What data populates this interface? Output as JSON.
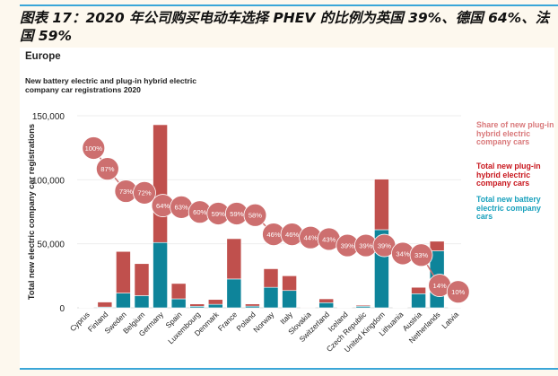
{
  "caption": "图表 17：2020 年公司购买电动车选择 PHEV 的比例为英国 39%、德国 64%、法国 59%",
  "colors": {
    "phev": "#c0504d",
    "bev": "#0e849a",
    "share_bubble": "#cd6f6f",
    "share_legend": "#d9787a",
    "phev_legend": "#c8161d",
    "bev_legend": "#17a0bc",
    "accent_line": "#3aa6d8"
  },
  "chart_data": {
    "type": "bar",
    "stacked": true,
    "region": "Europe",
    "title": "New battery electric and plug-in hybrid electric company car registrations 2020",
    "xlabel": "",
    "ylabel": "Total new electric company car registrations",
    "ylim": [
      0,
      150000
    ],
    "yticks": [
      0,
      50000,
      100000,
      150000
    ],
    "ytick_labels": [
      "0",
      "50,000",
      "100,000",
      "150,000"
    ],
    "grid": true,
    "legend_position": "right",
    "categories": [
      "Cyprus",
      "Finland",
      "Sweden",
      "Belgium",
      "Germany",
      "Spain",
      "Luxembourg",
      "Denmark",
      "France",
      "Poland",
      "Norway",
      "Italy",
      "Slovakia",
      "Switzerland",
      "Iceland",
      "Czech Republic",
      "United Kingdom",
      "Lithuania",
      "Austria",
      "Netherlands",
      "Latvia"
    ],
    "series": [
      {
        "name": "Total new battery electric company cars",
        "values": [
          0,
          600,
          11500,
          9500,
          51000,
          7000,
          1200,
          2700,
          22500,
          1300,
          16000,
          13500,
          300,
          4000,
          400,
          1200,
          61000,
          200,
          11000,
          44500,
          250
        ]
      },
      {
        "name": "Total new plug-in hybrid electric company cars",
        "values": [
          200,
          3900,
          32500,
          25000,
          92000,
          12000,
          1800,
          3800,
          31500,
          1700,
          14500,
          11500,
          300,
          3000,
          300,
          800,
          39500,
          100,
          5000,
          7500,
          50
        ]
      }
    ],
    "share_series": {
      "name": "Share of new plug-in hybrid electric company cars",
      "values_pct": [
        100,
        87,
        73,
        72,
        64,
        63,
        60,
        59,
        59,
        58,
        46,
        46,
        44,
        43,
        39,
        39,
        39,
        34,
        33,
        14,
        10
      ],
      "labels": [
        "100%",
        "87%",
        "73%",
        "72%",
        "64%",
        "63%",
        "60%",
        "59%",
        "59%",
        "58%",
        "46%",
        "46%",
        "44%",
        "43%",
        "39%",
        "39%",
        "39%",
        "34%",
        "33%",
        "14%",
        "10%"
      ]
    },
    "legend": [
      "Share of new plug-in hybrid electric company cars",
      "Total new plug-in hybrid electric company cars",
      "Total new battery electric company cars"
    ]
  }
}
